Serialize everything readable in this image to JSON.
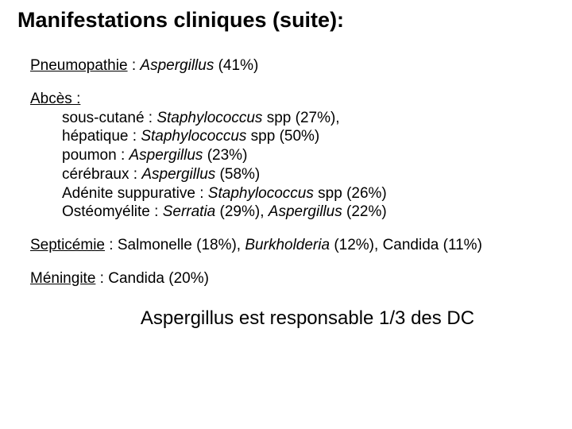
{
  "title": "Manifestations cliniques (suite):",
  "pneumopathie": {
    "label": "Pneumopathie",
    "pathogen": "Aspergillus",
    "pct": "(41%)"
  },
  "abces": {
    "label": "Abcès :",
    "items": [
      {
        "site": "sous-cutané : ",
        "pathogen": "Staphylococcus",
        "tail": " spp (27%),"
      },
      {
        "site": "hépatique : ",
        "pathogen": "Staphylococcus",
        "tail": " spp (50%)"
      },
      {
        "site": "poumon : ",
        "pathogen": "Aspergillus",
        "tail": " (23%)"
      },
      {
        "site": "cérébraux : ",
        "pathogen": "Aspergillus",
        "tail": " (58%)"
      },
      {
        "site": "Adénite suppurative : ",
        "pathogen": "Staphylococcus",
        "tail": " spp (26%)"
      },
      {
        "site": "Ostéomyélite : ",
        "pathogen": "Serratia",
        "tail": " (29%), ",
        "pathogen2": "Aspergillus",
        "tail2": " (22%)"
      }
    ]
  },
  "septicemie": {
    "label": "Septicémie",
    "p1": "Salmonelle (18%), ",
    "pathogen": "Burkholderia",
    "p2": " (12%), Candida (11%)"
  },
  "meningite": {
    "label": "Méningite",
    "rest": " : Candida (20%)"
  },
  "conclusion": "Aspergillus est responsable 1/3 des DC",
  "colors": {
    "text": "#000000",
    "background": "#ffffff"
  },
  "typography": {
    "title_fontsize_pt": 20,
    "body_fontsize_pt": 14,
    "conclusion_fontsize_pt": 18,
    "font_family": "Comic Sans MS"
  }
}
